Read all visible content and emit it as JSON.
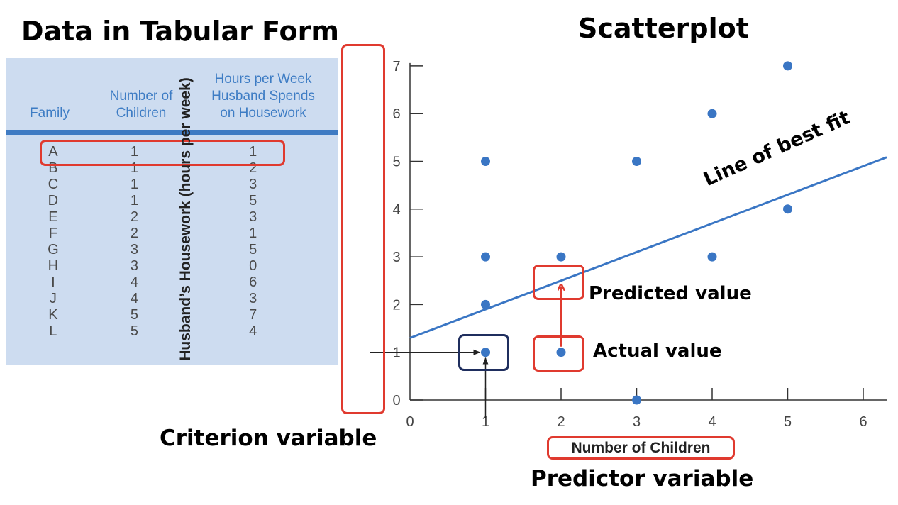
{
  "headings": {
    "table_title": "Data in Tabular Form",
    "scatter_title": "Scatterplot",
    "criterion_label": "Criterion variable",
    "predictor_label": "Predictor variable"
  },
  "table": {
    "headers": {
      "family": "Family",
      "children": "Number of\nChildren",
      "hours": "Hours per Week\nHusband Spends\non Housework"
    },
    "rows": [
      {
        "family": "A",
        "children": "1",
        "hours": "1"
      },
      {
        "family": "B",
        "children": "1",
        "hours": "2"
      },
      {
        "family": "C",
        "children": "1",
        "hours": "3"
      },
      {
        "family": "D",
        "children": "1",
        "hours": "5"
      },
      {
        "family": "E",
        "children": "2",
        "hours": "3"
      },
      {
        "family": "F",
        "children": "2",
        "hours": "1"
      },
      {
        "family": "G",
        "children": "3",
        "hours": "5"
      },
      {
        "family": "H",
        "children": "3",
        "hours": "0"
      },
      {
        "family": "I",
        "children": "4",
        "hours": "6"
      },
      {
        "family": "J",
        "children": "4",
        "hours": "3"
      },
      {
        "family": "K",
        "children": "5",
        "hours": "7"
      },
      {
        "family": "L",
        "children": "5",
        "hours": "4"
      }
    ]
  },
  "annotations": {
    "predicted": "Predicted value",
    "actual": "Actual value",
    "fit_line": "Line of best fit"
  },
  "colors": {
    "panel": "#cddcf0",
    "point": "#3a76c4",
    "line": "#3a76c4",
    "highlight_red": "#e03a2f",
    "highlight_navy": "#1f2e5e"
  },
  "chart_data": {
    "type": "scatter",
    "title": "Scatterplot",
    "xlabel": "Number of Children",
    "ylabel": "Husband’s Housework (hours per week)",
    "xlim": [
      0,
      6
    ],
    "ylim": [
      0,
      7
    ],
    "xticks": [
      "0",
      "1",
      "2",
      "3",
      "4",
      "5",
      "6"
    ],
    "yticks": [
      "0",
      "1",
      "2",
      "3",
      "4",
      "5",
      "6",
      "7"
    ],
    "grid": false,
    "points": [
      {
        "x": 1,
        "y": 1
      },
      {
        "x": 1,
        "y": 2
      },
      {
        "x": 1,
        "y": 3
      },
      {
        "x": 1,
        "y": 5
      },
      {
        "x": 2,
        "y": 3
      },
      {
        "x": 2,
        "y": 1
      },
      {
        "x": 3,
        "y": 5
      },
      {
        "x": 3,
        "y": 0
      },
      {
        "x": 4,
        "y": 6
      },
      {
        "x": 4,
        "y": 3
      },
      {
        "x": 5,
        "y": 7
      },
      {
        "x": 5,
        "y": 4
      }
    ],
    "fit_line": {
      "intercept": 1.3,
      "slope": 0.6
    },
    "predicted_point": {
      "x": 2,
      "y": 2.5
    }
  }
}
